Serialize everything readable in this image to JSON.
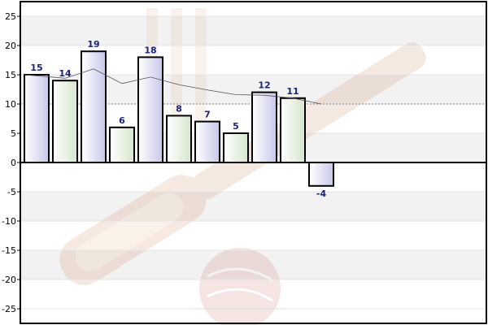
{
  "chart_data": {
    "type": "bar",
    "title": "",
    "xlabel": "",
    "ylabel": "",
    "ylim": [
      -27.5,
      27.5
    ],
    "yticks": [
      -25,
      -20,
      -15,
      -10,
      -5,
      0,
      5,
      10,
      15,
      20,
      25
    ],
    "grid": true,
    "legend": "none",
    "values": [
      15,
      14,
      19,
      6,
      18,
      8,
      7,
      5,
      12,
      11,
      -4
    ],
    "data_labels": [
      "15",
      "14",
      "19",
      "6",
      "18",
      "8",
      "7",
      "5",
      "12",
      "11",
      "-4"
    ],
    "bar_fill_styles": [
      "lavender",
      "green",
      "lavender",
      "green",
      "lavender",
      "green",
      "lavender",
      "green",
      "lavender",
      "green",
      "lavender"
    ],
    "trend_line": [
      15,
      14.4,
      16,
      13.5,
      14.6,
      13.3,
      12.4,
      11.6,
      11.5,
      11,
      10
    ],
    "average_line": 10,
    "colors": {
      "bar_lavender": "#c8c8e8",
      "bar_green": "#d6e6cc",
      "bar_stroke": "#000000",
      "data_label": "#1a237e",
      "trend_line": "#555555",
      "average_line": "#888888",
      "band_alt": "#f2f2f2",
      "axis": "#000000"
    },
    "background_icon": "cricket-bat-and-ball-watermark"
  }
}
